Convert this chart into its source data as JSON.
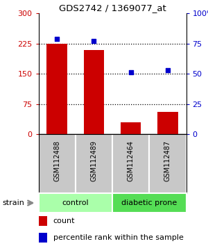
{
  "title": "GDS2742 / 1369077_at",
  "samples": [
    "GSM112488",
    "GSM112489",
    "GSM112464",
    "GSM112487"
  ],
  "counts": [
    224,
    210,
    30,
    55
  ],
  "percentiles": [
    79,
    77,
    51,
    53
  ],
  "ylim_left": [
    0,
    300
  ],
  "ylim_right": [
    0,
    100
  ],
  "yticks_left": [
    0,
    75,
    150,
    225,
    300
  ],
  "yticks_right": [
    0,
    25,
    50,
    75,
    100
  ],
  "ytick_labels_left": [
    "0",
    "75",
    "150",
    "225",
    "300"
  ],
  "ytick_labels_right": [
    "0",
    "25",
    "50",
    "75",
    "100%"
  ],
  "bar_color": "#cc0000",
  "dot_color": "#0000cc",
  "groups": [
    {
      "label": "control",
      "color": "#aaffaa"
    },
    {
      "label": "diabetic prone",
      "color": "#55dd55"
    }
  ],
  "sample_label_bg": "#c8c8c8",
  "strain_label": "strain",
  "legend_count_label": "count",
  "legend_percentile_label": "percentile rank within the sample",
  "dotted_line_color": "#000000",
  "bg_color": "#ffffff",
  "left_tick_color": "#cc0000",
  "right_tick_color": "#0000cc",
  "arrow_color": "#888888"
}
